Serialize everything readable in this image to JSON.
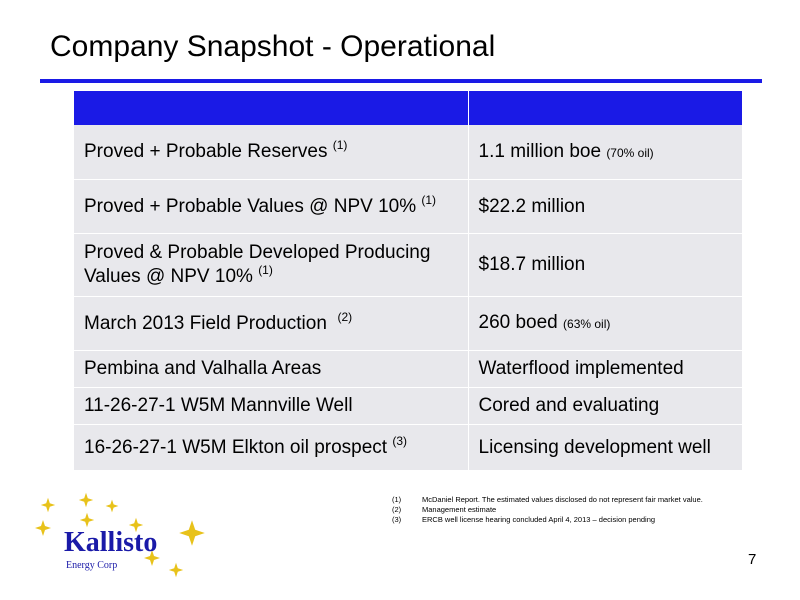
{
  "slide": {
    "title": "Company Snapshot - Operational",
    "page_number": "7"
  },
  "table": {
    "header": [
      "",
      ""
    ],
    "rows": [
      {
        "label": "Proved + Probable Reserves",
        "label_note": "(1)",
        "value": "1.1 million boe",
        "value_note": "(70% oil)"
      },
      {
        "label": "Proved + Probable Values @ NPV 10%",
        "label_note": "(1)",
        "value": "$22.2 million",
        "value_note": ""
      },
      {
        "label": "Proved & Probable Developed Producing Values @ NPV 10%",
        "label_note": "(1)",
        "value": "$18.7 million",
        "value_note": ""
      },
      {
        "label": "March 2013 Field Production",
        "label_note": "(2)",
        "value": "260 boed",
        "value_note": "(63% oil)"
      },
      {
        "label": "Pembina and Valhalla Areas",
        "label_note": "",
        "value": "Waterflood implemented",
        "value_note": ""
      },
      {
        "label": "11-26-27-1 W5M Mannville Well",
        "label_note": "",
        "value": "Cored and evaluating",
        "value_note": ""
      },
      {
        "label": "16-26-27-1 W5M Elkton oil prospect",
        "label_note": "(3)",
        "value": "Licensing development well",
        "value_note": ""
      }
    ]
  },
  "footnotes": [
    {
      "num": "(1)",
      "text": "McDaniel Report. The estimated values disclosed do not represent fair market value."
    },
    {
      "num": "(2)",
      "text": "Management estimate"
    },
    {
      "num": "(3)",
      "text": "ERCB well license  hearing concluded April 4, 2013 – decision pending"
    }
  ],
  "logo": {
    "name": "Kallisto",
    "subtitle": "Energy Corp",
    "icon": "gold-stars-icon"
  },
  "colors": {
    "accent_blue": "#1a1ae6",
    "cell_gray": "#e8e8ec",
    "logo_blue": "#1a1aa8",
    "star_gold": "#e8c21a"
  }
}
